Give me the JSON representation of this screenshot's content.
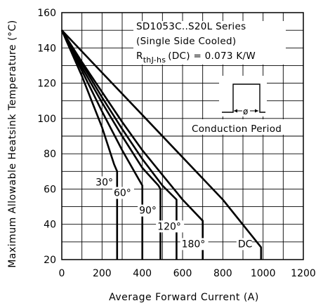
{
  "chart_data": {
    "type": "line",
    "title": "",
    "xlabel": "Average Forward Current (A)",
    "ylabel": "Maximum Allowable Heatsink Temperature (°C)",
    "xlim": [
      0,
      1200
    ],
    "ylim": [
      20,
      160
    ],
    "x_ticks": [
      "0",
      "200",
      "400",
      "600",
      "800",
      "1000",
      "1200"
    ],
    "y_ticks": [
      "20",
      "40",
      "60",
      "80",
      "100",
      "120",
      "140",
      "160"
    ],
    "grid": true,
    "annotations": {
      "series_title": "SD1053C..S20L Series",
      "cooling": "(Single Side Cooled)",
      "rth_label": "R",
      "rth_sub": "thJ-hs",
      "rth_value": "(DC) = 0.073 K/W",
      "conduction": "Conduction Period",
      "phi": "ø"
    },
    "series": [
      {
        "name": "30°",
        "label_x": 168,
        "label_y": 62,
        "points": [
          [
            0,
            150
          ],
          [
            100,
            124
          ],
          [
            200,
            95
          ],
          [
            260,
            74
          ],
          [
            275,
            70
          ],
          [
            275,
            20
          ]
        ]
      },
      {
        "name": "60°",
        "label_x": 258,
        "label_y": 56,
        "points": [
          [
            0,
            150
          ],
          [
            100,
            127
          ],
          [
            200,
            104
          ],
          [
            300,
            82
          ],
          [
            380,
            66
          ],
          [
            400,
            62
          ],
          [
            400,
            20
          ]
        ]
      },
      {
        "name": "90°",
        "label_x": 384,
        "label_y": 46,
        "points": [
          [
            0,
            150
          ],
          [
            100,
            129
          ],
          [
            200,
            109
          ],
          [
            300,
            90
          ],
          [
            400,
            72
          ],
          [
            480,
            62
          ],
          [
            490,
            60
          ],
          [
            490,
            20
          ]
        ]
      },
      {
        "name": "120°",
        "label_x": 475,
        "label_y": 37,
        "points": [
          [
            0,
            150
          ],
          [
            100,
            131
          ],
          [
            200,
            112
          ],
          [
            300,
            94
          ],
          [
            400,
            77
          ],
          [
            500,
            62
          ],
          [
            570,
            54
          ],
          [
            570,
            20
          ]
        ]
      },
      {
        "name": "180°",
        "label_x": 595,
        "label_y": 27,
        "points": [
          [
            0,
            150
          ],
          [
            100,
            132
          ],
          [
            200,
            115
          ],
          [
            300,
            98
          ],
          [
            400,
            82
          ],
          [
            500,
            68
          ],
          [
            600,
            54
          ],
          [
            700,
            42
          ],
          [
            700,
            20
          ]
        ]
      },
      {
        "name": "DC",
        "label_x": 875,
        "label_y": 27,
        "points": [
          [
            0,
            150
          ],
          [
            200,
            126
          ],
          [
            400,
            102
          ],
          [
            600,
            78
          ],
          [
            800,
            54
          ],
          [
            990,
            27
          ],
          [
            990,
            20
          ]
        ]
      }
    ]
  }
}
